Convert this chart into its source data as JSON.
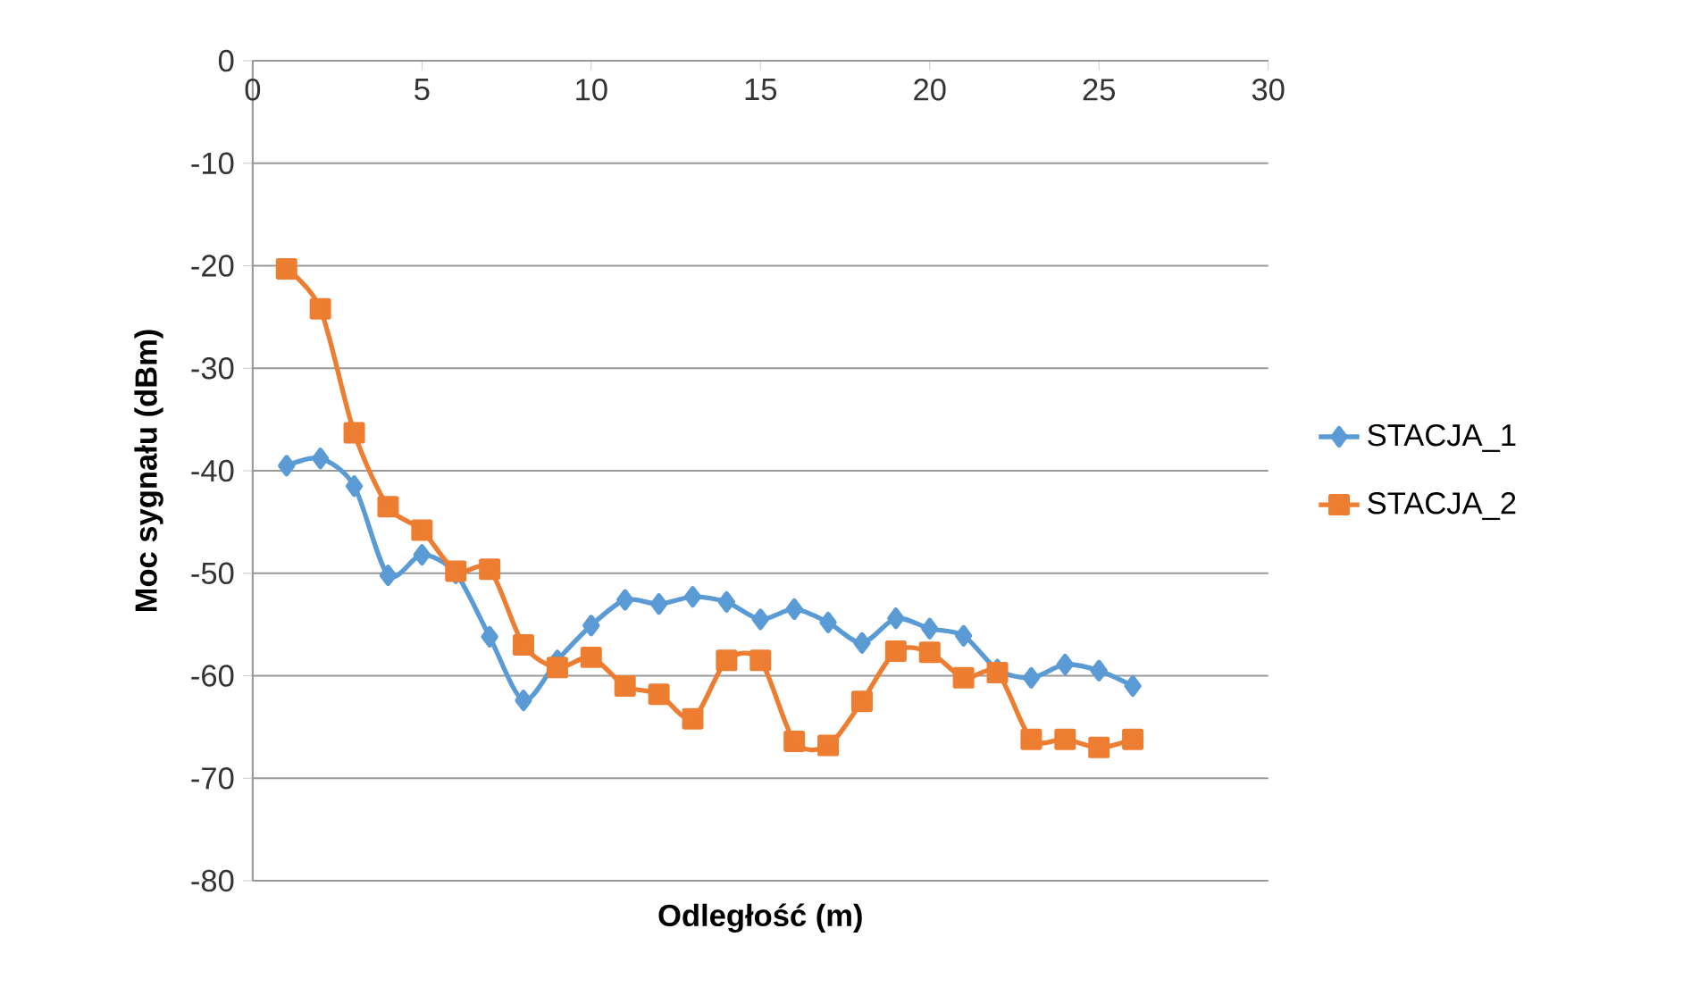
{
  "chart_data": {
    "type": "line",
    "xlabel": "Odległość (m)",
    "ylabel": "Moc sygnału (dBm)",
    "xlim": [
      0,
      30
    ],
    "xticks": [
      0,
      5,
      10,
      15,
      20,
      25,
      30
    ],
    "ylim": [
      -80,
      0
    ],
    "yticks": [
      -80,
      -70,
      -60,
      -50,
      -40,
      -30,
      -20,
      -10,
      0
    ],
    "grid": "y",
    "legend": "right",
    "x": [
      1,
      2,
      3,
      4,
      5,
      6,
      7,
      8,
      9,
      10,
      11,
      12,
      13,
      14,
      15,
      16,
      17,
      18,
      19,
      20,
      21,
      22,
      23,
      24,
      25,
      26
    ],
    "series": [
      {
        "name": "STACJA_1",
        "color": "#5b9bd5",
        "marker": "diamond",
        "values": [
          -39.5,
          -38.8,
          -41.5,
          -50.2,
          -48.2,
          -50,
          -56.2,
          -62.4,
          -58.5,
          -55.1,
          -52.6,
          -53,
          -52.3,
          -52.8,
          -54.5,
          -53.5,
          -54.8,
          -56.8,
          -54.4,
          -55.4,
          -56.1,
          -59.4,
          -60.2,
          -58.9,
          -59.5,
          -61
        ]
      },
      {
        "name": "STACJA_2",
        "color": "#ed7d31",
        "marker": "square",
        "values": [
          -20.3,
          -24.2,
          -36.3,
          -43.5,
          -45.8,
          -49.8,
          -49.6,
          -57,
          -59.2,
          -58.2,
          -61,
          -61.8,
          -64.2,
          -58.5,
          -58.5,
          -66.4,
          -66.8,
          -62.5,
          -57.6,
          -57.7,
          -60.2,
          -59.7,
          -66.2,
          -66.2,
          -67,
          -66.2
        ]
      }
    ]
  }
}
